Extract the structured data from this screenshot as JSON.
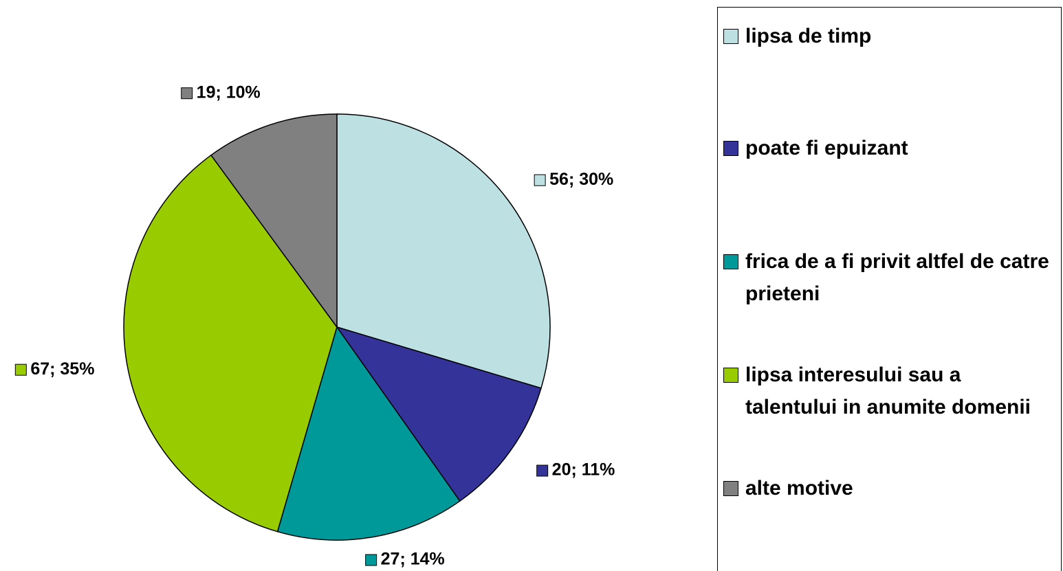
{
  "chart_data": {
    "type": "pie",
    "categories": [
      "lipsa de timp",
      "poate fi epuizant",
      "frica de a fi privit altfel de catre prieteni",
      "lipsa interesului sau a talentului in anumite domenii",
      "alte motive"
    ],
    "values": [
      56,
      20,
      27,
      67,
      19
    ],
    "value_labels": [
      "56; 30%",
      "20; 11%",
      "27; 14%",
      "67; 35%",
      "19; 10%"
    ],
    "colors": [
      "#bde0e3",
      "#333399",
      "#009999",
      "#99cc00",
      "#808080"
    ],
    "legend": "right"
  }
}
